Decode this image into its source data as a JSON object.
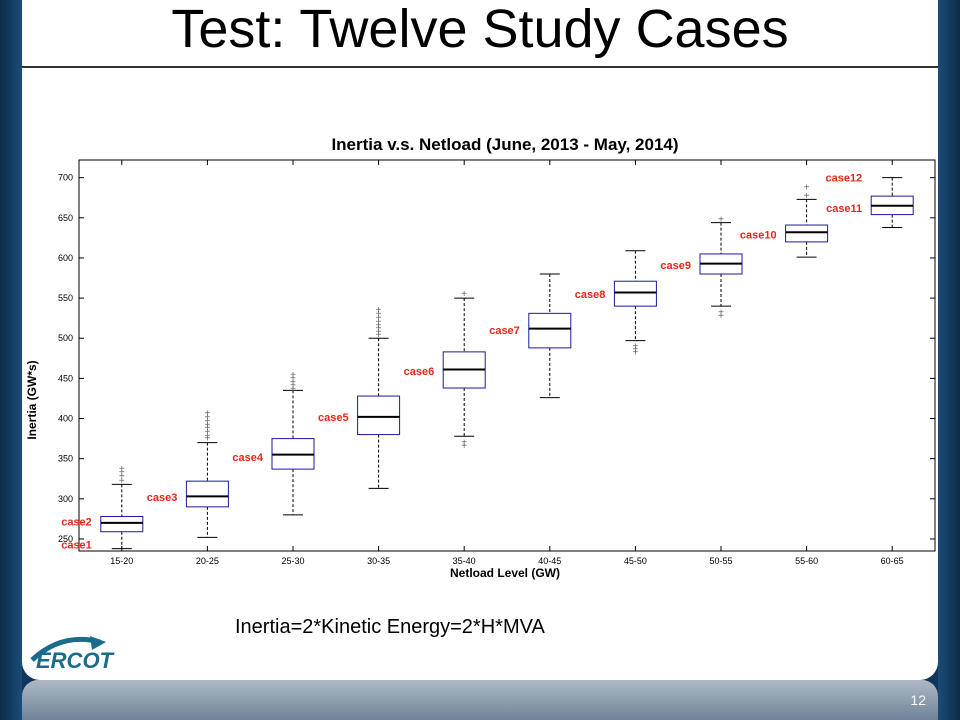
{
  "slide": {
    "title": "Test: Twelve Study Cases",
    "formula": "Inertia=2*Kinetic Energy=2*H*MVA",
    "page_number": "12",
    "logo_text": "ERCOT"
  },
  "colors": {
    "background": "#0f3558",
    "case_label": "#e8261a",
    "box_edge": "#1a1aa0",
    "median": "#000000"
  },
  "chart_data": {
    "type": "box",
    "title": "Inertia v.s. Netload (June, 2013 - May, 2014)",
    "xlabel": "Netload Level (GW)",
    "ylabel": "Inertia (GW*s)",
    "ylim": [
      235,
      722
    ],
    "yticks": [
      250,
      300,
      350,
      400,
      450,
      500,
      550,
      600,
      650,
      700
    ],
    "categories": [
      "15-20",
      "20-25",
      "25-30",
      "30-35",
      "35-40",
      "40-45",
      "45-50",
      "50-55",
      "55-60",
      "60-65"
    ],
    "boxes": [
      {
        "category": "15-20",
        "whisker_low": 238,
        "q1": 259,
        "median": 270,
        "q3": 278,
        "whisker_high": 318,
        "outliers": [
          322,
          328,
          333,
          337
        ]
      },
      {
        "category": "20-25",
        "whisker_low": 252,
        "q1": 290,
        "median": 303,
        "q3": 322,
        "whisker_high": 370,
        "outliers": [
          375,
          378,
          383,
          388,
          392,
          396,
          401,
          406
        ]
      },
      {
        "category": "25-30",
        "whisker_low": 280,
        "q1": 337,
        "median": 355,
        "q3": 375,
        "whisker_high": 435,
        "outliers": [
          437,
          441,
          445,
          450,
          454
        ]
      },
      {
        "category": "30-35",
        "whisker_low": 313,
        "q1": 380,
        "median": 402,
        "q3": 428,
        "whisker_high": 500,
        "outliers": [
          504,
          508,
          512,
          516,
          520,
          525,
          530,
          535
        ]
      },
      {
        "category": "35-40",
        "whisker_low": 378,
        "q1": 438,
        "median": 461,
        "q3": 483,
        "whisker_high": 550,
        "outliers": [
          366,
          370,
          555
        ]
      },
      {
        "category": "40-45",
        "whisker_low": 426,
        "q1": 488,
        "median": 512,
        "q3": 531,
        "whisker_high": 580,
        "outliers": []
      },
      {
        "category": "45-50",
        "whisker_low": 497,
        "q1": 540,
        "median": 557,
        "q3": 571,
        "whisker_high": 609,
        "outliers": [
          482,
          486,
          490
        ]
      },
      {
        "category": "50-55",
        "whisker_low": 540,
        "q1": 580,
        "median": 593,
        "q3": 605,
        "whisker_high": 644,
        "outliers": [
          528,
          532,
          648
        ]
      },
      {
        "category": "55-60",
        "whisker_low": 601,
        "q1": 620,
        "median": 632,
        "q3": 641,
        "whisker_high": 673,
        "outliers": [
          677,
          688
        ]
      },
      {
        "category": "60-65",
        "whisker_low": 638,
        "q1": 654,
        "median": 665,
        "q3": 677,
        "whisker_high": 700,
        "outliers": []
      }
    ],
    "annotations": [
      {
        "text": "case1",
        "x_index": 0,
        "y": 243
      },
      {
        "text": "case2",
        "x_index": 0,
        "y": 272
      },
      {
        "text": "case3",
        "x_index": 1,
        "y": 302
      },
      {
        "text": "case4",
        "x_index": 2,
        "y": 352
      },
      {
        "text": "case5",
        "x_index": 3,
        "y": 402
      },
      {
        "text": "case6",
        "x_index": 4,
        "y": 459
      },
      {
        "text": "case7",
        "x_index": 5,
        "y": 510
      },
      {
        "text": "case8",
        "x_index": 6,
        "y": 555
      },
      {
        "text": "case9",
        "x_index": 7,
        "y": 591
      },
      {
        "text": "case10",
        "x_index": 8,
        "y": 629
      },
      {
        "text": "case11",
        "x_index": 9,
        "y": 662
      },
      {
        "text": "case12",
        "x_index": 9,
        "y": 700
      }
    ]
  }
}
